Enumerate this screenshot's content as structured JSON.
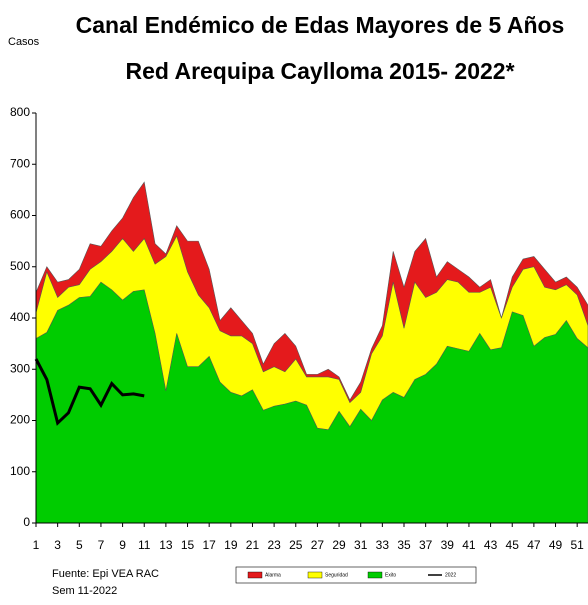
{
  "chart_data": {
    "type": "area",
    "title": "Canal Endémico de Edas Mayores de 5 Años",
    "subtitle": "Red Arequipa Caylloma 2015- 2022*",
    "y_label": "Casos",
    "source": "Fuente: Epi VEA RAC",
    "week_note": "Sem  11-2022",
    "x": [
      1,
      2,
      3,
      4,
      5,
      6,
      7,
      8,
      9,
      10,
      11,
      12,
      13,
      14,
      15,
      16,
      17,
      18,
      19,
      20,
      21,
      22,
      23,
      24,
      25,
      26,
      27,
      28,
      29,
      30,
      31,
      32,
      33,
      34,
      35,
      36,
      37,
      38,
      39,
      40,
      41,
      42,
      43,
      44,
      45,
      46,
      47,
      48,
      49,
      50,
      51,
      52
    ],
    "xlim": [
      1,
      52
    ],
    "xticks": [
      1,
      3,
      5,
      7,
      9,
      11,
      13,
      15,
      17,
      19,
      21,
      23,
      25,
      27,
      29,
      31,
      33,
      35,
      37,
      39,
      41,
      43,
      45,
      47,
      49,
      51
    ],
    "ylim": [
      0,
      800
    ],
    "yticks": [
      0,
      100,
      200,
      300,
      400,
      500,
      600,
      700,
      800
    ],
    "series": [
      {
        "name": "Alarma",
        "color": "#e41a1c",
        "values": [
          450,
          500,
          470,
          475,
          495,
          545,
          540,
          570,
          595,
          635,
          665,
          545,
          525,
          580,
          550,
          550,
          495,
          395,
          420,
          395,
          370,
          310,
          350,
          370,
          345,
          290,
          290,
          300,
          285,
          240,
          275,
          340,
          385,
          530,
          460,
          530,
          555,
          480,
          510,
          495,
          480,
          460,
          475,
          400,
          480,
          515,
          520,
          495,
          470,
          480,
          460,
          425
        ]
      },
      {
        "name": "Seguridad",
        "color": "#ffff00",
        "values": [
          410,
          490,
          440,
          460,
          465,
          495,
          510,
          530,
          555,
          530,
          555,
          505,
          520,
          560,
          490,
          445,
          420,
          375,
          365,
          365,
          350,
          295,
          305,
          295,
          320,
          285,
          285,
          285,
          280,
          235,
          255,
          330,
          365,
          470,
          380,
          470,
          440,
          450,
          475,
          470,
          450,
          450,
          460,
          400,
          460,
          495,
          500,
          460,
          455,
          465,
          445,
          385
        ]
      },
      {
        "name": "Exito",
        "color": "#00cc00",
        "values": [
          360,
          372,
          415,
          425,
          440,
          442,
          470,
          455,
          435,
          452,
          455,
          370,
          258,
          370,
          305,
          305,
          325,
          275,
          255,
          248,
          260,
          220,
          228,
          232,
          238,
          230,
          185,
          182,
          218,
          188,
          222,
          200,
          240,
          255,
          245,
          280,
          290,
          310,
          345,
          340,
          335,
          370,
          338,
          342,
          412,
          405,
          345,
          362,
          368,
          395,
          360,
          342
        ]
      },
      {
        "name": "2022",
        "color": "#000000",
        "line": true,
        "values": [
          320,
          280,
          195,
          215,
          265,
          262,
          230,
          272,
          250,
          252,
          248,
          null,
          null,
          null,
          null,
          null,
          null,
          null,
          null,
          null,
          null,
          null,
          null,
          null,
          null,
          null,
          null,
          null,
          null,
          null,
          null,
          null,
          null,
          null,
          null,
          null,
          null,
          null,
          null,
          null,
          null,
          null,
          null,
          null,
          null,
          null,
          null,
          null,
          null,
          null,
          null,
          null
        ]
      }
    ]
  }
}
